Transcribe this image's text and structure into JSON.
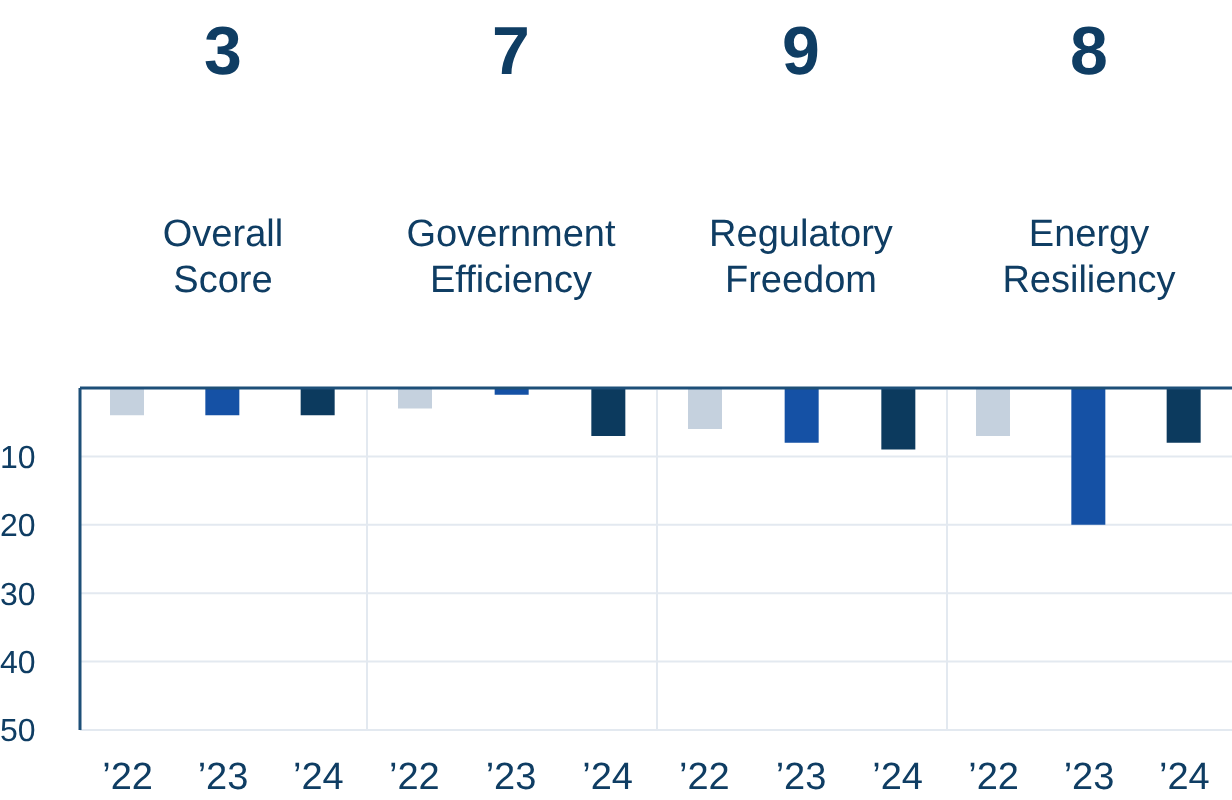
{
  "chart_data": [
    {
      "type": "bar",
      "title": "Overall Score",
      "annotations": [
        "3"
      ],
      "categories": [
        "’22",
        "’23",
        "’24"
      ],
      "values": [
        4,
        4,
        4
      ],
      "colors": [
        "#c5d1de",
        "#1551a5",
        "#0c3a5e"
      ],
      "ylim": [
        50,
        0
      ],
      "yticks": [
        10,
        20,
        30,
        40,
        50
      ],
      "grid": "y"
    },
    {
      "type": "bar",
      "title": "Government Efficiency",
      "annotations": [
        "7"
      ],
      "categories": [
        "’22",
        "’23",
        "’24"
      ],
      "values": [
        3,
        1,
        7
      ],
      "colors": [
        "#c5d1de",
        "#1551a5",
        "#0c3a5e"
      ],
      "ylim": [
        50,
        0
      ],
      "yticks": [
        10,
        20,
        30,
        40,
        50
      ],
      "grid": "y",
      "tick_labels": "x"
    },
    {
      "type": "bar",
      "title": "Regulatory Freedom",
      "annotations": [
        "9"
      ],
      "categories": [
        "’22",
        "’23",
        "’24"
      ],
      "values": [
        6,
        8,
        9
      ],
      "colors": [
        "#c5d1de",
        "#1551a5",
        "#0c3a5e"
      ],
      "ylim": [
        50,
        0
      ],
      "yticks": [
        10,
        20,
        30,
        40,
        50
      ],
      "grid": "y",
      "tick_labels": "x"
    },
    {
      "type": "bar",
      "title": "Energy Resiliency",
      "annotations": [
        "8"
      ],
      "categories": [
        "’22",
        "’23",
        "’24"
      ],
      "values": [
        7,
        20,
        8
      ],
      "colors": [
        "#c5d1de",
        "#1551a5",
        "#0c3a5e"
      ],
      "ylim": [
        50,
        0
      ],
      "yticks": [
        10,
        20,
        30,
        40,
        50
      ],
      "grid": "y",
      "tick_labels": "x"
    }
  ]
}
